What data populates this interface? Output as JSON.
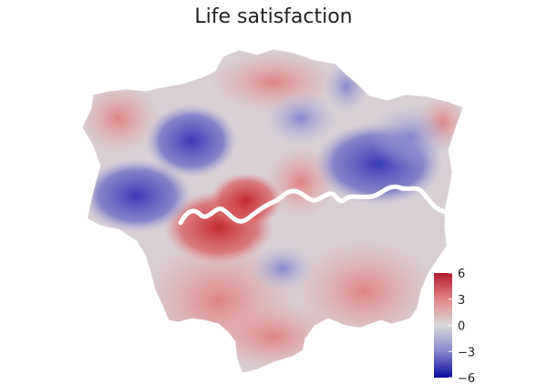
{
  "title": "Life satisfaction",
  "legend": {
    "ticks": [
      "6",
      "3",
      "0",
      "−3",
      "−6"
    ],
    "values": [
      6,
      3,
      0,
      -3,
      -6
    ],
    "colors": {
      "high": "#b2182b",
      "mid": "#d9d9d9",
      "low": "#0a0aa0"
    }
  },
  "map": {
    "river_color": "#ffffff"
  }
}
